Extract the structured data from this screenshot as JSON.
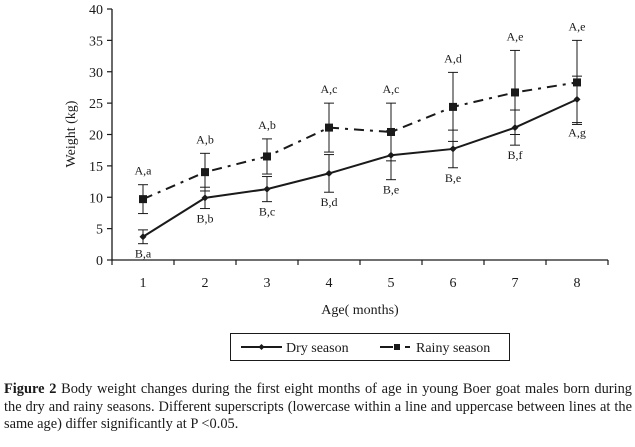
{
  "chart_data": {
    "type": "line",
    "title": "",
    "xlabel": "Age( months)",
    "ylabel": "Weight (kg)",
    "ylim": [
      0,
      40
    ],
    "yticks": [
      "0",
      "5",
      "10",
      "15",
      "20",
      "25",
      "30",
      "35",
      "40"
    ],
    "categories": [
      "1",
      "2",
      "3",
      "4",
      "5",
      "6",
      "7",
      "8"
    ],
    "grid": false,
    "legend_position": "bottom-center",
    "series": [
      {
        "name": "Dry season",
        "line_style": "solid",
        "marker": "diamond",
        "values": [
          3.7,
          9.9,
          11.3,
          13.8,
          16.7,
          17.7,
          21.1,
          25.6
        ],
        "error": [
          1.1,
          1.7,
          2.0,
          3.0,
          3.9,
          3.0,
          2.8,
          3.7
        ],
        "labels": [
          "B,a",
          "B,b",
          "B,c",
          "B,d",
          "B,e",
          "B,e",
          "B,f",
          "A,g"
        ]
      },
      {
        "name": "Rainy season",
        "line_style": "dash-dot",
        "marker": "square",
        "values": [
          9.7,
          14.0,
          16.5,
          21.1,
          20.4,
          24.4,
          26.7,
          28.3
        ],
        "error": [
          2.3,
          3.0,
          2.8,
          3.9,
          4.6,
          5.5,
          6.7,
          6.7
        ],
        "labels": [
          "A,a",
          "A,b",
          "A,b",
          "A,c",
          "A,c",
          "A,d",
          "A,e",
          "A,e"
        ]
      }
    ],
    "colors": {
      "line": "#1a1a1a",
      "background": "#ffffff"
    }
  },
  "caption": {
    "label": "Figure 2",
    "text": " Body weight changes during the first eight months of age in young Boer goat males born during the dry and rainy seasons. Different superscripts (lowercase within a line and uppercase between lines at the same age) differ significantly at P <0.05."
  }
}
